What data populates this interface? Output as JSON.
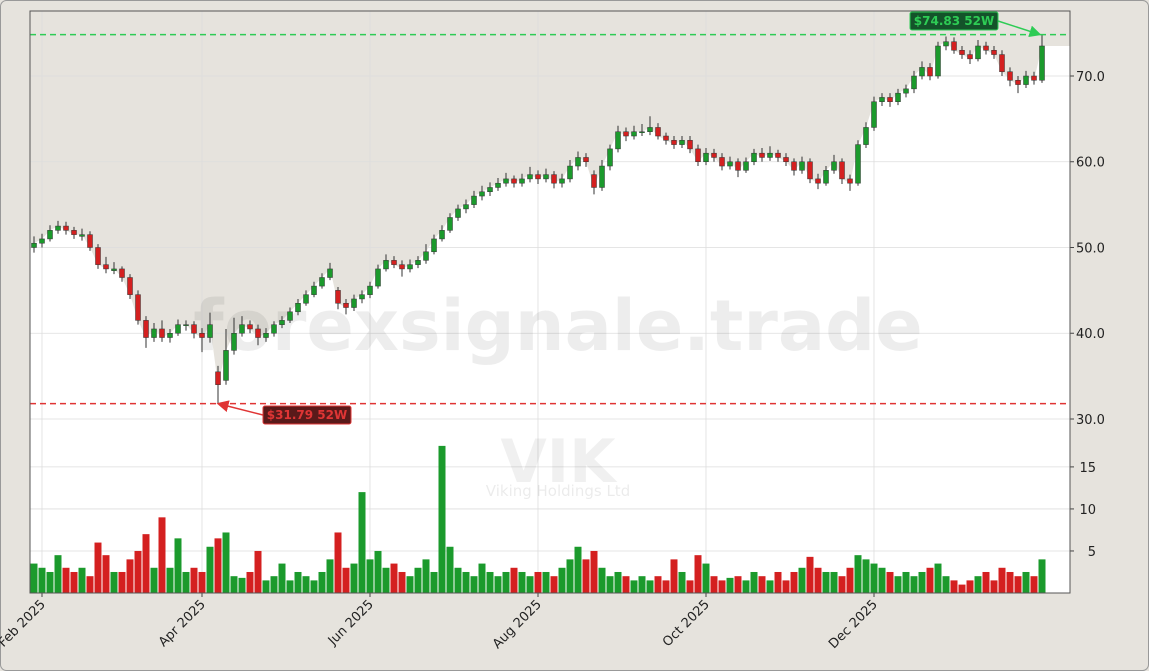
{
  "chart_data": {
    "type": "candlestick",
    "watermark": "forexsignale.trade",
    "symbol": "VIK",
    "company": "Viking Holdings Ltd",
    "categories": [
      null,
      "Feb 2025",
      null,
      null,
      null,
      null,
      null,
      null,
      null,
      null,
      null,
      null,
      null,
      null,
      null,
      null,
      null,
      null,
      null,
      null,
      null,
      "Apr 2025",
      null,
      null,
      null,
      null,
      null,
      null,
      null,
      null,
      null,
      null,
      null,
      null,
      null,
      null,
      null,
      null,
      null,
      null,
      null,
      null,
      "Jun 2025",
      null,
      null,
      null,
      null,
      null,
      null,
      null,
      null,
      null,
      null,
      null,
      null,
      null,
      null,
      null,
      null,
      null,
      null,
      null,
      null,
      "Aug 2025",
      null,
      null,
      null,
      null,
      null,
      null,
      null,
      null,
      null,
      null,
      null,
      null,
      null,
      null,
      null,
      null,
      null,
      null,
      null,
      null,
      "Oct 2025",
      null,
      null,
      null,
      null,
      null,
      null,
      null,
      null,
      null,
      null,
      null,
      null,
      null,
      null,
      null,
      null,
      null,
      null,
      null,
      null,
      "Dec 2025",
      null,
      null,
      null,
      null,
      null,
      null,
      null,
      null,
      null,
      null,
      null,
      null,
      null,
      null,
      null,
      null,
      null,
      null,
      null,
      null,
      null
    ],
    "candles": [
      [
        50.0,
        51.3,
        49.4,
        50.5
      ],
      [
        50.5,
        51.6,
        50.0,
        51
      ],
      [
        51,
        52.6,
        50.7,
        52
      ],
      [
        52,
        53.1,
        51.6,
        52.5
      ],
      [
        52.5,
        53,
        51.5,
        52
      ],
      [
        52,
        52.4,
        51,
        51.5
      ],
      [
        51.3,
        52.2,
        50.8,
        51.5
      ],
      [
        51.5,
        51.9,
        49.6,
        50
      ],
      [
        50,
        50.4,
        47.5,
        48
      ],
      [
        48,
        48.9,
        47,
        47.5
      ],
      [
        47.3,
        48.3,
        46.9,
        47.5
      ],
      [
        47.5,
        47.8,
        46,
        46.5
      ],
      [
        46.5,
        46.9,
        44,
        44.5
      ],
      [
        44.5,
        45,
        41,
        41.5
      ],
      [
        41.5,
        42,
        38.3,
        39.5
      ],
      [
        39.5,
        41.2,
        39,
        40.5
      ],
      [
        40.5,
        41.5,
        39,
        39.5
      ],
      [
        39.5,
        40.5,
        38.9,
        40
      ],
      [
        40,
        41.6,
        39.7,
        41
      ],
      [
        41,
        41.5,
        40.3,
        41
      ],
      [
        41,
        41.4,
        39.4,
        40
      ],
      [
        40,
        40.6,
        37.8,
        39.5
      ],
      [
        39.5,
        42.4,
        38.9,
        41
      ],
      [
        35.5,
        36.2,
        31.79,
        34
      ],
      [
        34.5,
        40.5,
        34,
        38
      ],
      [
        38,
        41.8,
        37.5,
        40
      ],
      [
        40,
        42,
        39.6,
        41
      ],
      [
        41,
        41.5,
        40,
        40.5
      ],
      [
        40.5,
        41,
        38.6,
        39.5
      ],
      [
        39.5,
        40.6,
        39,
        40
      ],
      [
        40,
        41.4,
        39.6,
        41
      ],
      [
        41,
        42,
        40.6,
        41.5
      ],
      [
        41.5,
        43,
        41.2,
        42.5
      ],
      [
        42.5,
        44,
        42.1,
        43.5
      ],
      [
        43.5,
        45,
        43.2,
        44.5
      ],
      [
        44.5,
        46,
        44.2,
        45.5
      ],
      [
        45.5,
        47,
        45.2,
        46.5
      ],
      [
        46.5,
        48.2,
        46.2,
        47.5
      ],
      [
        45,
        45.4,
        42.8,
        43.5
      ],
      [
        43.5,
        44,
        42.2,
        43
      ],
      [
        43,
        44.5,
        42.6,
        44
      ],
      [
        44,
        45,
        43.5,
        44.5
      ],
      [
        44.5,
        46,
        44.1,
        45.5
      ],
      [
        45.5,
        48,
        45.2,
        47.5
      ],
      [
        47.5,
        49.2,
        47.2,
        48.5
      ],
      [
        48.5,
        49,
        47.6,
        48
      ],
      [
        48,
        48.5,
        46.6,
        47.5
      ],
      [
        47.5,
        48.6,
        47.1,
        48
      ],
      [
        48,
        49,
        47.6,
        48.5
      ],
      [
        48.5,
        50.4,
        48.1,
        49.5
      ],
      [
        49.5,
        51.5,
        49.2,
        51
      ],
      [
        51,
        52.6,
        50.7,
        52
      ],
      [
        52,
        54,
        51.7,
        53.5
      ],
      [
        53.5,
        55,
        53.1,
        54.5
      ],
      [
        54.5,
        55.6,
        54,
        55
      ],
      [
        55,
        56.6,
        54.6,
        56
      ],
      [
        56,
        57.2,
        55.5,
        56.5
      ],
      [
        56.5,
        57.6,
        56,
        57
      ],
      [
        57,
        58.1,
        56.6,
        57.5
      ],
      [
        57.5,
        58.7,
        57.1,
        58
      ],
      [
        58,
        58.4,
        57,
        57.5
      ],
      [
        57.5,
        58.6,
        57.1,
        58
      ],
      [
        58,
        59.4,
        57.6,
        58.5
      ],
      [
        58.5,
        59,
        57.4,
        58
      ],
      [
        58,
        59.2,
        57.6,
        58.5
      ],
      [
        58.5,
        58.9,
        56.9,
        57.5
      ],
      [
        57.5,
        58.6,
        57,
        58
      ],
      [
        58,
        60.2,
        57.6,
        59.5
      ],
      [
        59.5,
        61.2,
        59,
        60.5
      ],
      [
        60.5,
        61,
        59.4,
        60
      ],
      [
        58.5,
        59,
        56.2,
        57
      ],
      [
        57,
        60.2,
        56.6,
        59.5
      ],
      [
        59.5,
        62,
        59,
        61.5
      ],
      [
        61.5,
        64.2,
        61.1,
        63.5
      ],
      [
        63.5,
        64,
        62.4,
        63
      ],
      [
        63,
        64.2,
        62.6,
        63.5
      ],
      [
        63.5,
        64.4,
        63,
        63.5
      ],
      [
        63.5,
        65.3,
        63.1,
        64
      ],
      [
        64,
        64.5,
        62.6,
        63
      ],
      [
        63,
        63.4,
        62,
        62.5
      ],
      [
        62.5,
        63,
        61.5,
        62
      ],
      [
        62,
        63,
        61.6,
        62.5
      ],
      [
        62.5,
        63,
        61,
        61.5
      ],
      [
        61.5,
        62,
        59.5,
        60
      ],
      [
        60,
        61.6,
        59.6,
        61
      ],
      [
        61,
        61.5,
        60,
        60.5
      ],
      [
        60.5,
        61,
        59,
        59.5
      ],
      [
        59.5,
        60.6,
        59.1,
        60
      ],
      [
        60,
        60.4,
        58.2,
        59
      ],
      [
        59,
        60.5,
        58.7,
        60
      ],
      [
        60,
        61.5,
        59.6,
        61
      ],
      [
        61,
        61.6,
        60,
        60.5
      ],
      [
        60.5,
        61.8,
        60.1,
        61
      ],
      [
        61,
        61.4,
        60,
        60.5
      ],
      [
        60.5,
        61,
        59.5,
        60
      ],
      [
        60,
        60.4,
        58.4,
        59
      ],
      [
        59,
        60.6,
        58.6,
        60
      ],
      [
        60,
        60.4,
        57.5,
        58
      ],
      [
        58,
        58.6,
        56.8,
        57.5
      ],
      [
        57.5,
        59.5,
        57.2,
        59
      ],
      [
        59,
        60.8,
        58.6,
        60
      ],
      [
        60,
        60.4,
        57.4,
        58
      ],
      [
        58,
        58.5,
        56.6,
        57.5
      ],
      [
        57.5,
        62.5,
        57.2,
        62
      ],
      [
        62,
        64.6,
        61.6,
        64
      ],
      [
        64,
        67.6,
        63.6,
        67
      ],
      [
        67,
        68,
        66.5,
        67.5
      ],
      [
        67.5,
        68,
        66.4,
        67
      ],
      [
        67,
        68.5,
        66.6,
        68
      ],
      [
        68,
        69,
        67.5,
        68.5
      ],
      [
        68.5,
        70.6,
        68,
        70
      ],
      [
        70,
        71.7,
        69.6,
        71
      ],
      [
        71,
        71.5,
        69.5,
        70
      ],
      [
        70,
        74,
        69.7,
        73.5
      ],
      [
        73.5,
        74.6,
        73,
        74
      ],
      [
        74,
        74.5,
        72.6,
        73
      ],
      [
        73,
        73.5,
        72,
        72.5
      ],
      [
        72.5,
        73,
        71.4,
        72
      ],
      [
        72,
        74.2,
        71.7,
        73.5
      ],
      [
        73.5,
        74,
        72.5,
        73
      ],
      [
        73,
        73.5,
        72,
        72.5
      ],
      [
        72.5,
        73,
        70,
        70.5
      ],
      [
        70.5,
        71,
        68.8,
        69.5
      ],
      [
        69.5,
        70,
        68,
        69
      ],
      [
        69,
        70.6,
        68.6,
        70
      ],
      [
        70,
        70.5,
        69,
        69.5
      ],
      [
        69.5,
        74.83,
        69.2,
        73.5
      ]
    ],
    "volume": [
      3.5,
      3,
      2.5,
      4.5,
      3,
      2.5,
      3,
      2,
      6,
      4.5,
      2.5,
      2.5,
      4,
      5,
      7,
      3,
      9,
      3,
      6.5,
      2.5,
      3,
      2.5,
      5.5,
      6.5,
      7.2,
      2,
      1.8,
      2.5,
      5,
      1.5,
      2,
      3.5,
      1.5,
      2.5,
      2,
      1.5,
      2.5,
      4,
      7.2,
      3,
      3.5,
      12,
      4,
      5,
      3,
      3.5,
      2.5,
      2,
      3,
      4,
      2.5,
      17.5,
      5.5,
      3,
      2.5,
      2,
      3.5,
      2.5,
      2,
      2.5,
      3,
      2.5,
      2,
      2.5,
      2.5,
      2,
      3,
      4,
      5.5,
      4,
      5,
      3,
      2,
      2.5,
      2,
      1.5,
      2,
      1.5,
      2,
      1.5,
      4,
      2.5,
      1.5,
      4.5,
      3.5,
      2,
      1.5,
      1.8,
      2,
      1.5,
      2.5,
      2,
      1.5,
      2.5,
      1.5,
      2.5,
      3,
      4.3,
      3,
      2.5,
      2.5,
      2,
      3,
      4.5,
      4,
      3.5,
      3,
      2.5,
      2,
      2.5,
      2,
      2.5,
      3,
      3.5,
      2,
      1.5,
      1,
      1.5,
      2,
      2.5,
      1.5,
      3,
      2.5,
      2,
      2.5,
      2,
      4
    ],
    "up_color": "#1b9a2c",
    "down_color": "#d42020",
    "ylim": [
      27.55,
      77.58
    ],
    "yticks": [
      {
        "value": 30,
        "label": "30.0"
      },
      {
        "value": 40,
        "label": "40.0"
      },
      {
        "value": 50,
        "label": "50.0"
      },
      {
        "value": 60,
        "label": "60.0"
      },
      {
        "value": 70,
        "label": "70.0"
      }
    ],
    "volume_ylim": [
      0,
      18.2
    ],
    "volume_ticks": [
      5,
      10,
      15
    ],
    "grid": true,
    "annotations": [
      {
        "label": "$74.83 52W",
        "value": 74.83,
        "color": "#2ecc55"
      },
      {
        "label": "$31.79 52W",
        "value": 31.79,
        "color": "#e03535"
      }
    ]
  }
}
